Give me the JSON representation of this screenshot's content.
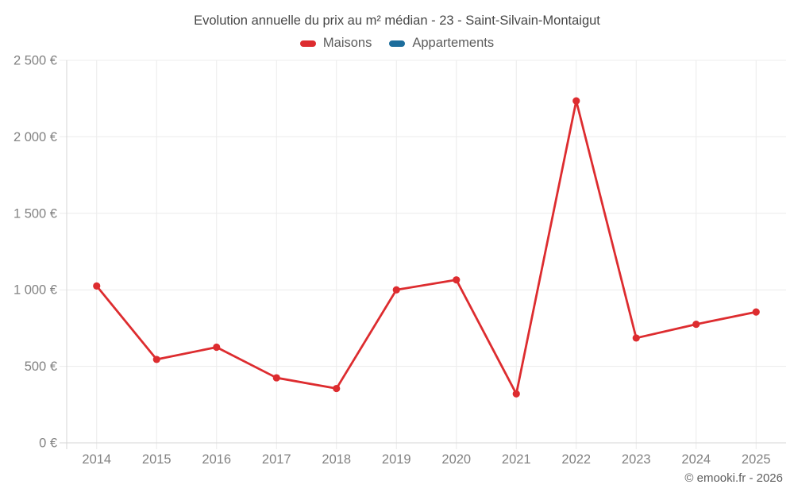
{
  "header": {
    "title": "Evolution annuelle du prix au m² médian - 23 - Saint-Silvain-Montaigut"
  },
  "legend": {
    "items": [
      {
        "label": "Maisons",
        "color": "#dd2c2f"
      },
      {
        "label": "Appartements",
        "color": "#1c6d9c"
      }
    ]
  },
  "footer": {
    "copyright": "© emooki.fr - 2026"
  },
  "chart_data": {
    "type": "line",
    "title": "Evolution annuelle du prix au m² médian - 23 - Saint-Silvain-Montaigut",
    "categories": [
      "2014",
      "2015",
      "2016",
      "2017",
      "2018",
      "2019",
      "2020",
      "2021",
      "2022",
      "2023",
      "2024",
      "2025"
    ],
    "series": [
      {
        "name": "Maisons",
        "color": "#dd2c2f",
        "values": [
          1025,
          545,
          625,
          425,
          355,
          1000,
          1065,
          320,
          2235,
          685,
          775,
          855
        ]
      },
      {
        "name": "Appartements",
        "color": "#1c6d9c",
        "values": []
      }
    ],
    "xlabel": "",
    "ylabel": "",
    "ylim": [
      0,
      2500
    ],
    "ytick_step": 500,
    "ytick_suffix": " €",
    "ytick_labels": [
      "0 €",
      "500 €",
      "1 000 €",
      "1 500 €",
      "2 000 €",
      "2 500 €"
    ],
    "grid": true,
    "legend_position": "top"
  }
}
